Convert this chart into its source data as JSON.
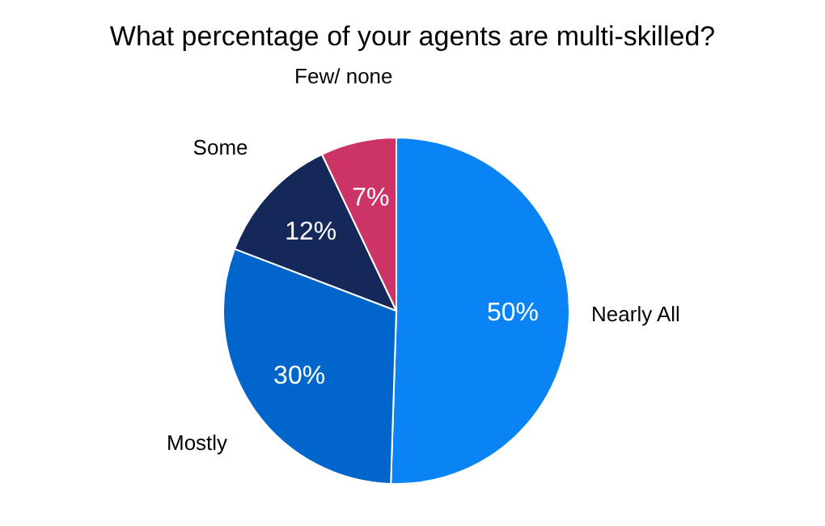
{
  "chart_data": {
    "type": "pie",
    "title": "What percentage of your agents are multi-skilled?",
    "categories": [
      "Nearly All",
      "Mostly",
      "Some",
      "Few/ none"
    ],
    "values": [
      50,
      30,
      12,
      7
    ],
    "colors": [
      "#0a84f5",
      "#0066cc",
      "#15285a",
      "#cc3366"
    ],
    "value_labels": [
      "50%",
      "30%",
      "12%",
      "7%"
    ],
    "legend": false
  }
}
